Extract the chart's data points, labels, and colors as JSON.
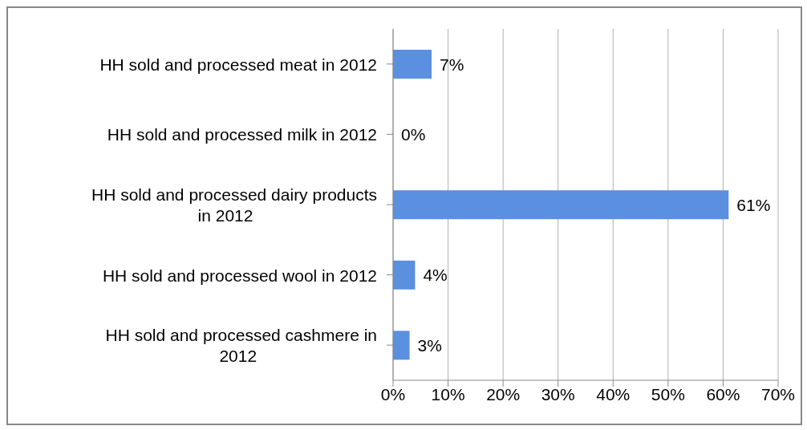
{
  "chart_data": {
    "type": "bar",
    "orientation": "horizontal",
    "categories": [
      "HH sold and processed meat in 2012",
      "HH sold and processed milk in 2012",
      "HH sold and processed dairy products in 2012",
      "HH sold and processed wool in 2012",
      "HH sold and processed cashmere in 2012"
    ],
    "values": [
      7,
      0,
      61,
      4,
      3
    ],
    "value_labels": [
      "7%",
      "0%",
      "61%",
      "4%",
      "3%"
    ],
    "color": "#5b8fdf",
    "xlim": [
      0,
      70
    ],
    "xticks": [
      {
        "value": 0,
        "label": "0%"
      },
      {
        "value": 10,
        "label": "10%"
      },
      {
        "value": 20,
        "label": "20%"
      },
      {
        "value": 30,
        "label": "30%"
      },
      {
        "value": 40,
        "label": "40%"
      },
      {
        "value": 50,
        "label": "50%"
      },
      {
        "value": 60,
        "label": "60%"
      },
      {
        "value": 70,
        "label": "70%"
      }
    ],
    "grid": "x"
  }
}
